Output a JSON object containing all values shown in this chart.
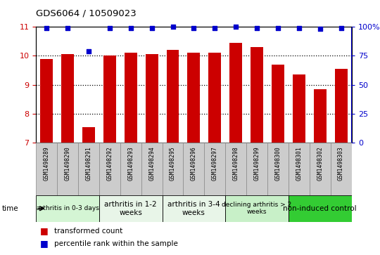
{
  "title": "GDS6064 / 10509023",
  "samples": [
    "GSM1498289",
    "GSM1498290",
    "GSM1498291",
    "GSM1498292",
    "GSM1498293",
    "GSM1498294",
    "GSM1498295",
    "GSM1498296",
    "GSM1498297",
    "GSM1498298",
    "GSM1498299",
    "GSM1498300",
    "GSM1498301",
    "GSM1498302",
    "GSM1498303"
  ],
  "bar_values": [
    9.9,
    10.05,
    7.55,
    10.0,
    10.1,
    10.05,
    10.2,
    10.1,
    10.1,
    10.45,
    10.3,
    9.7,
    9.35,
    8.85,
    9.55
  ],
  "dot_values": [
    99,
    99,
    79,
    99,
    99,
    99,
    100,
    99,
    99,
    100,
    99,
    99,
    99,
    98,
    99
  ],
  "ylim_left": [
    7,
    11
  ],
  "ylim_right": [
    0,
    100
  ],
  "yticks_left": [
    7,
    8,
    9,
    10,
    11
  ],
  "yticks_right": [
    0,
    25,
    50,
    75,
    100
  ],
  "ytick_labels_right": [
    "0",
    "25",
    "50",
    "75",
    "100%"
  ],
  "bar_color": "#cc0000",
  "dot_color": "#0000cc",
  "groups": [
    {
      "label": "arthritis in 0-3 days",
      "start": 0,
      "end": 3,
      "color": "#d4f5d4",
      "fontsize": 6.5
    },
    {
      "label": "arthritis in 1-2\nweeks",
      "start": 3,
      "end": 6,
      "color": "#e8f5e8",
      "fontsize": 7.5
    },
    {
      "label": "arthritis in 3-4\nweeks",
      "start": 6,
      "end": 9,
      "color": "#e8f5e8",
      "fontsize": 7.5
    },
    {
      "label": "declining arthritis > 2\nweeks",
      "start": 9,
      "end": 12,
      "color": "#c8f0c8",
      "fontsize": 6.5
    },
    {
      "label": "non-induced control",
      "start": 12,
      "end": 15,
      "color": "#33cc33",
      "fontsize": 7.5
    }
  ],
  "legend_red": "transformed count",
  "legend_blue": "percentile rank within the sample",
  "time_label": "time",
  "background_color": "#ffffff",
  "plot_bg": "#ffffff",
  "tick_label_color_left": "#cc0000",
  "tick_label_color_right": "#0000cc",
  "grid_color": "#000000",
  "sample_box_color": "#cccccc",
  "sample_box_edge": "#888888"
}
